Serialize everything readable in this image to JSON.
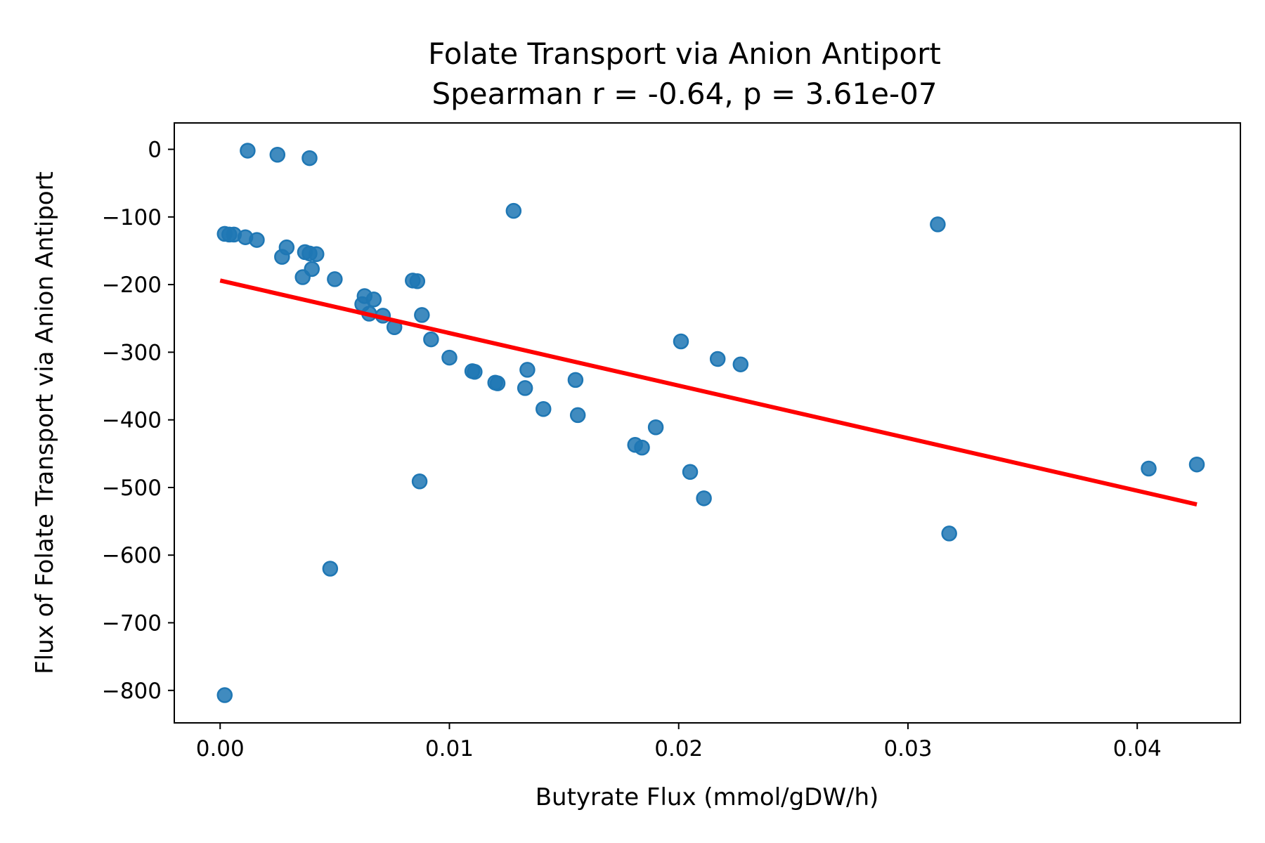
{
  "chart_data": {
    "type": "scatter",
    "title": "Folate Transport via Anion Antiport",
    "subtitle": "Spearman r = -0.64, p = 3.61e-07",
    "xlabel": "Butyrate Flux (mmol/gDW/h)",
    "ylabel": "Flux of Folate Transport via Anion Antiport",
    "xlim": [
      -0.002,
      0.0445
    ],
    "ylim": [
      -848,
      39
    ],
    "x_ticks": [
      0.0,
      0.01,
      0.02,
      0.03,
      0.04
    ],
    "x_tick_labels": [
      "0.00",
      "0.01",
      "0.02",
      "0.03",
      "0.04"
    ],
    "y_ticks": [
      0,
      -100,
      -200,
      -300,
      -400,
      -500,
      -600,
      -700,
      -800
    ],
    "y_tick_labels": [
      "0",
      "−100",
      "−200",
      "−300",
      "−400",
      "−500",
      "−600",
      "−700",
      "−800"
    ],
    "grid": false,
    "series": [
      {
        "color": "#1f77b4",
        "points": [
          {
            "x": 0.0012,
            "y": -2
          },
          {
            "x": 0.0025,
            "y": -8
          },
          {
            "x": 0.0039,
            "y": -13
          },
          {
            "x": 0.0128,
            "y": -91
          },
          {
            "x": 0.0313,
            "y": -111
          },
          {
            "x": 0.0002,
            "y": -125
          },
          {
            "x": 0.0004,
            "y": -126
          },
          {
            "x": 0.0006,
            "y": -126
          },
          {
            "x": 0.0011,
            "y": -130
          },
          {
            "x": 0.0016,
            "y": -134
          },
          {
            "x": 0.0029,
            "y": -145
          },
          {
            "x": 0.0027,
            "y": -159
          },
          {
            "x": 0.0037,
            "y": -152
          },
          {
            "x": 0.0039,
            "y": -154
          },
          {
            "x": 0.0042,
            "y": -155
          },
          {
            "x": 0.004,
            "y": -177
          },
          {
            "x": 0.0036,
            "y": -189
          },
          {
            "x": 0.005,
            "y": -192
          },
          {
            "x": 0.0084,
            "y": -194
          },
          {
            "x": 0.0086,
            "y": -195
          },
          {
            "x": 0.0063,
            "y": -217
          },
          {
            "x": 0.0067,
            "y": -222
          },
          {
            "x": 0.0062,
            "y": -229
          },
          {
            "x": 0.0065,
            "y": -243
          },
          {
            "x": 0.0071,
            "y": -246
          },
          {
            "x": 0.0088,
            "y": -245
          },
          {
            "x": 0.0076,
            "y": -263
          },
          {
            "x": 0.0092,
            "y": -281
          },
          {
            "x": 0.01,
            "y": -308
          },
          {
            "x": 0.011,
            "y": -328
          },
          {
            "x": 0.0111,
            "y": -329
          },
          {
            "x": 0.0134,
            "y": -326
          },
          {
            "x": 0.012,
            "y": -345
          },
          {
            "x": 0.0121,
            "y": -346
          },
          {
            "x": 0.0133,
            "y": -353
          },
          {
            "x": 0.0155,
            "y": -341
          },
          {
            "x": 0.0141,
            "y": -384
          },
          {
            "x": 0.0156,
            "y": -393
          },
          {
            "x": 0.0201,
            "y": -284
          },
          {
            "x": 0.0217,
            "y": -310
          },
          {
            "x": 0.0227,
            "y": -318
          },
          {
            "x": 0.019,
            "y": -411
          },
          {
            "x": 0.0181,
            "y": -437
          },
          {
            "x": 0.0184,
            "y": -441
          },
          {
            "x": 0.0205,
            "y": -477
          },
          {
            "x": 0.0211,
            "y": -516
          },
          {
            "x": 0.0087,
            "y": -491
          },
          {
            "x": 0.0405,
            "y": -472
          },
          {
            "x": 0.0426,
            "y": -466
          },
          {
            "x": 0.0318,
            "y": -568
          },
          {
            "x": 0.0048,
            "y": -620
          },
          {
            "x": 0.0002,
            "y": -807
          }
        ]
      }
    ],
    "fit_line": {
      "color": "#ff0000",
      "x": [
        0.0,
        0.0426
      ],
      "y": [
        -194,
        -525
      ]
    }
  }
}
